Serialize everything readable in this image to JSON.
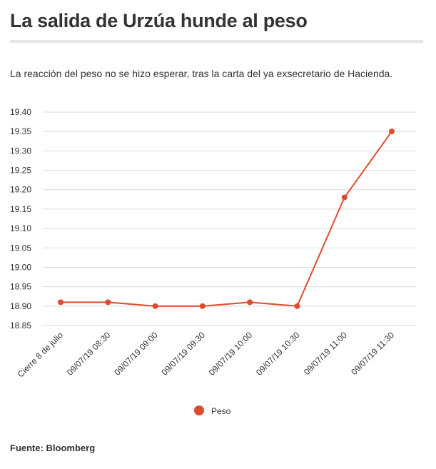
{
  "header": {
    "title": "La salida de Urzúa hunde al peso",
    "subtitle": "La reacción del peso no se hizo esperar, tras la carta del ya exsecretario de Hacienda."
  },
  "footer": {
    "source": "Fuente: Bloomberg"
  },
  "colors": {
    "series": "#e04a2f",
    "grid": "#d9d9d9",
    "text": "#333333"
  },
  "chart_data": {
    "type": "line",
    "title": "La salida de Urzúa hunde al peso",
    "subtitle": "La reacción del peso no se hizo esperar, tras la carta del ya exsecretario de Hacienda.",
    "xlabel": "",
    "ylabel": "",
    "categories": [
      "Cierre 8 de julio",
      "09/07/19 08:30",
      "09/07/19 09:00",
      "09/07/19 09:30",
      "09/07/19 10:00",
      "09/07/19 10:30",
      "09/07/19 11:00",
      "09/07/19 11:30"
    ],
    "series": [
      {
        "name": "Peso",
        "values": [
          18.91,
          18.91,
          18.9,
          18.9,
          18.91,
          18.9,
          19.18,
          19.35
        ]
      }
    ],
    "ylim": [
      18.85,
      19.4
    ],
    "yticks": [
      "19.40",
      "19.35",
      "19.30",
      "19.25",
      "19.20",
      "19.15",
      "19.10",
      "19.05",
      "19.00",
      "18.95",
      "18.90",
      "18.85"
    ],
    "grid": true,
    "legend": "bottom-center"
  }
}
